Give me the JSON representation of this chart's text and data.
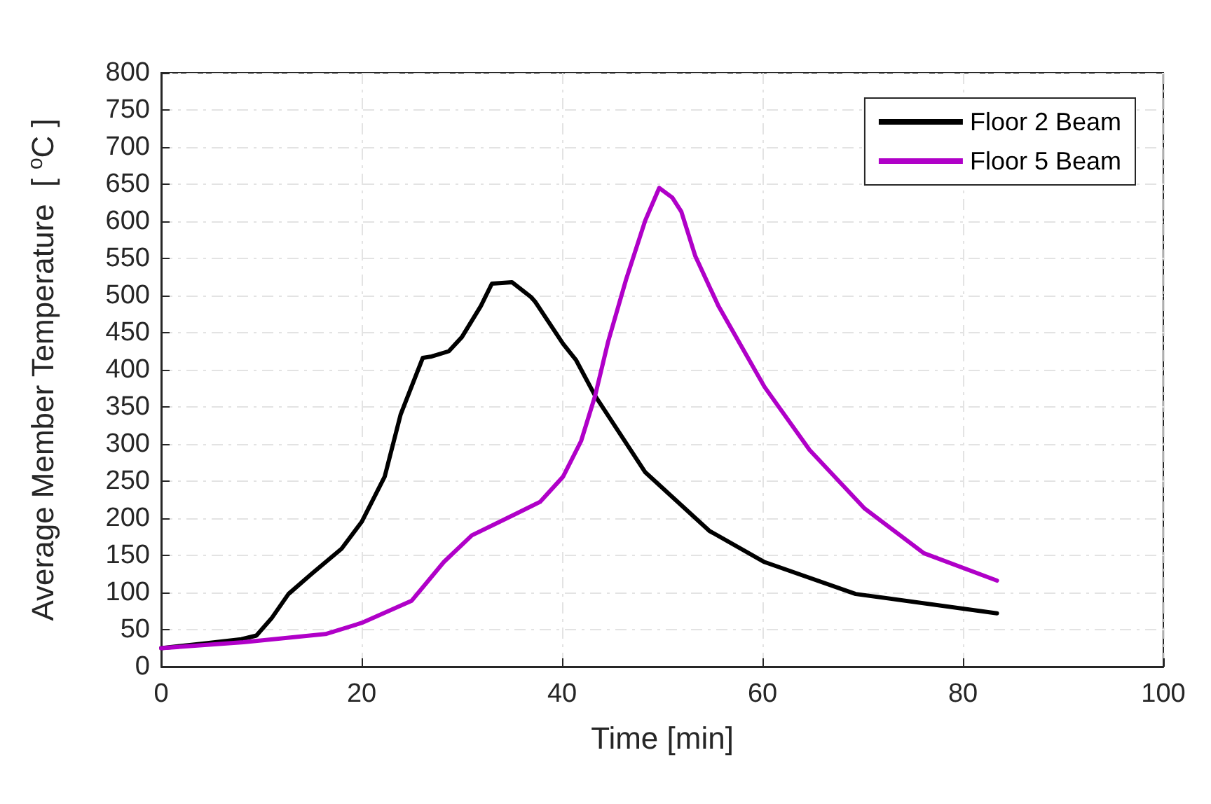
{
  "chart_data": {
    "type": "line",
    "xlabel": "Time [min]",
    "ylabel": "Average Member Temperature  [ $^{o}$C ]",
    "xlim": [
      0,
      100
    ],
    "xticks": [
      0,
      20,
      40,
      60,
      80,
      100
    ],
    "ylim": [
      0,
      800
    ],
    "yticks": [
      0,
      50,
      100,
      150,
      200,
      250,
      300,
      350,
      400,
      450,
      500,
      550,
      600,
      650,
      700,
      750,
      800
    ],
    "grid": true,
    "legend": "top right",
    "marker": "none",
    "line_style": "solid",
    "series": [
      {
        "name": "Floor 2 Beam",
        "color": "#000000",
        "x": [
          0,
          4,
          8,
          9.5,
          11,
          12.7,
          15,
          18,
          20,
          22.3,
          23.9,
          26.1,
          27,
          28.7,
          30,
          31.9,
          33,
          35,
          36.9,
          37.3,
          40.1,
          41.4,
          43.3,
          48.3,
          54.7,
          60.2,
          69.3,
          83.4
        ],
        "values": [
          25,
          31,
          37,
          42,
          65,
          98,
          125,
          159,
          195,
          256,
          340,
          416,
          418,
          425,
          444,
          486,
          516,
          518,
          498,
          492,
          435,
          413,
          365,
          262,
          183,
          141,
          98,
          72
        ]
      },
      {
        "name": "Floor 5 Beam",
        "color": "#b000c8",
        "x": [
          0,
          8.2,
          16.4,
          20,
          25,
          28.2,
          31,
          35.1,
          37.8,
          40.1,
          41.9,
          43.3,
          44.6,
          46.4,
          48.3,
          49.7,
          51,
          51.9,
          53.3,
          55.6,
          60.2,
          64.7,
          70.2,
          76.1,
          83.4
        ],
        "values": [
          25,
          33,
          44,
          59,
          89,
          141,
          177,
          204,
          222,
          256,
          304,
          365,
          438,
          522,
          601,
          645,
          632,
          613,
          553,
          486,
          377,
          292,
          213,
          153,
          116
        ]
      }
    ]
  }
}
